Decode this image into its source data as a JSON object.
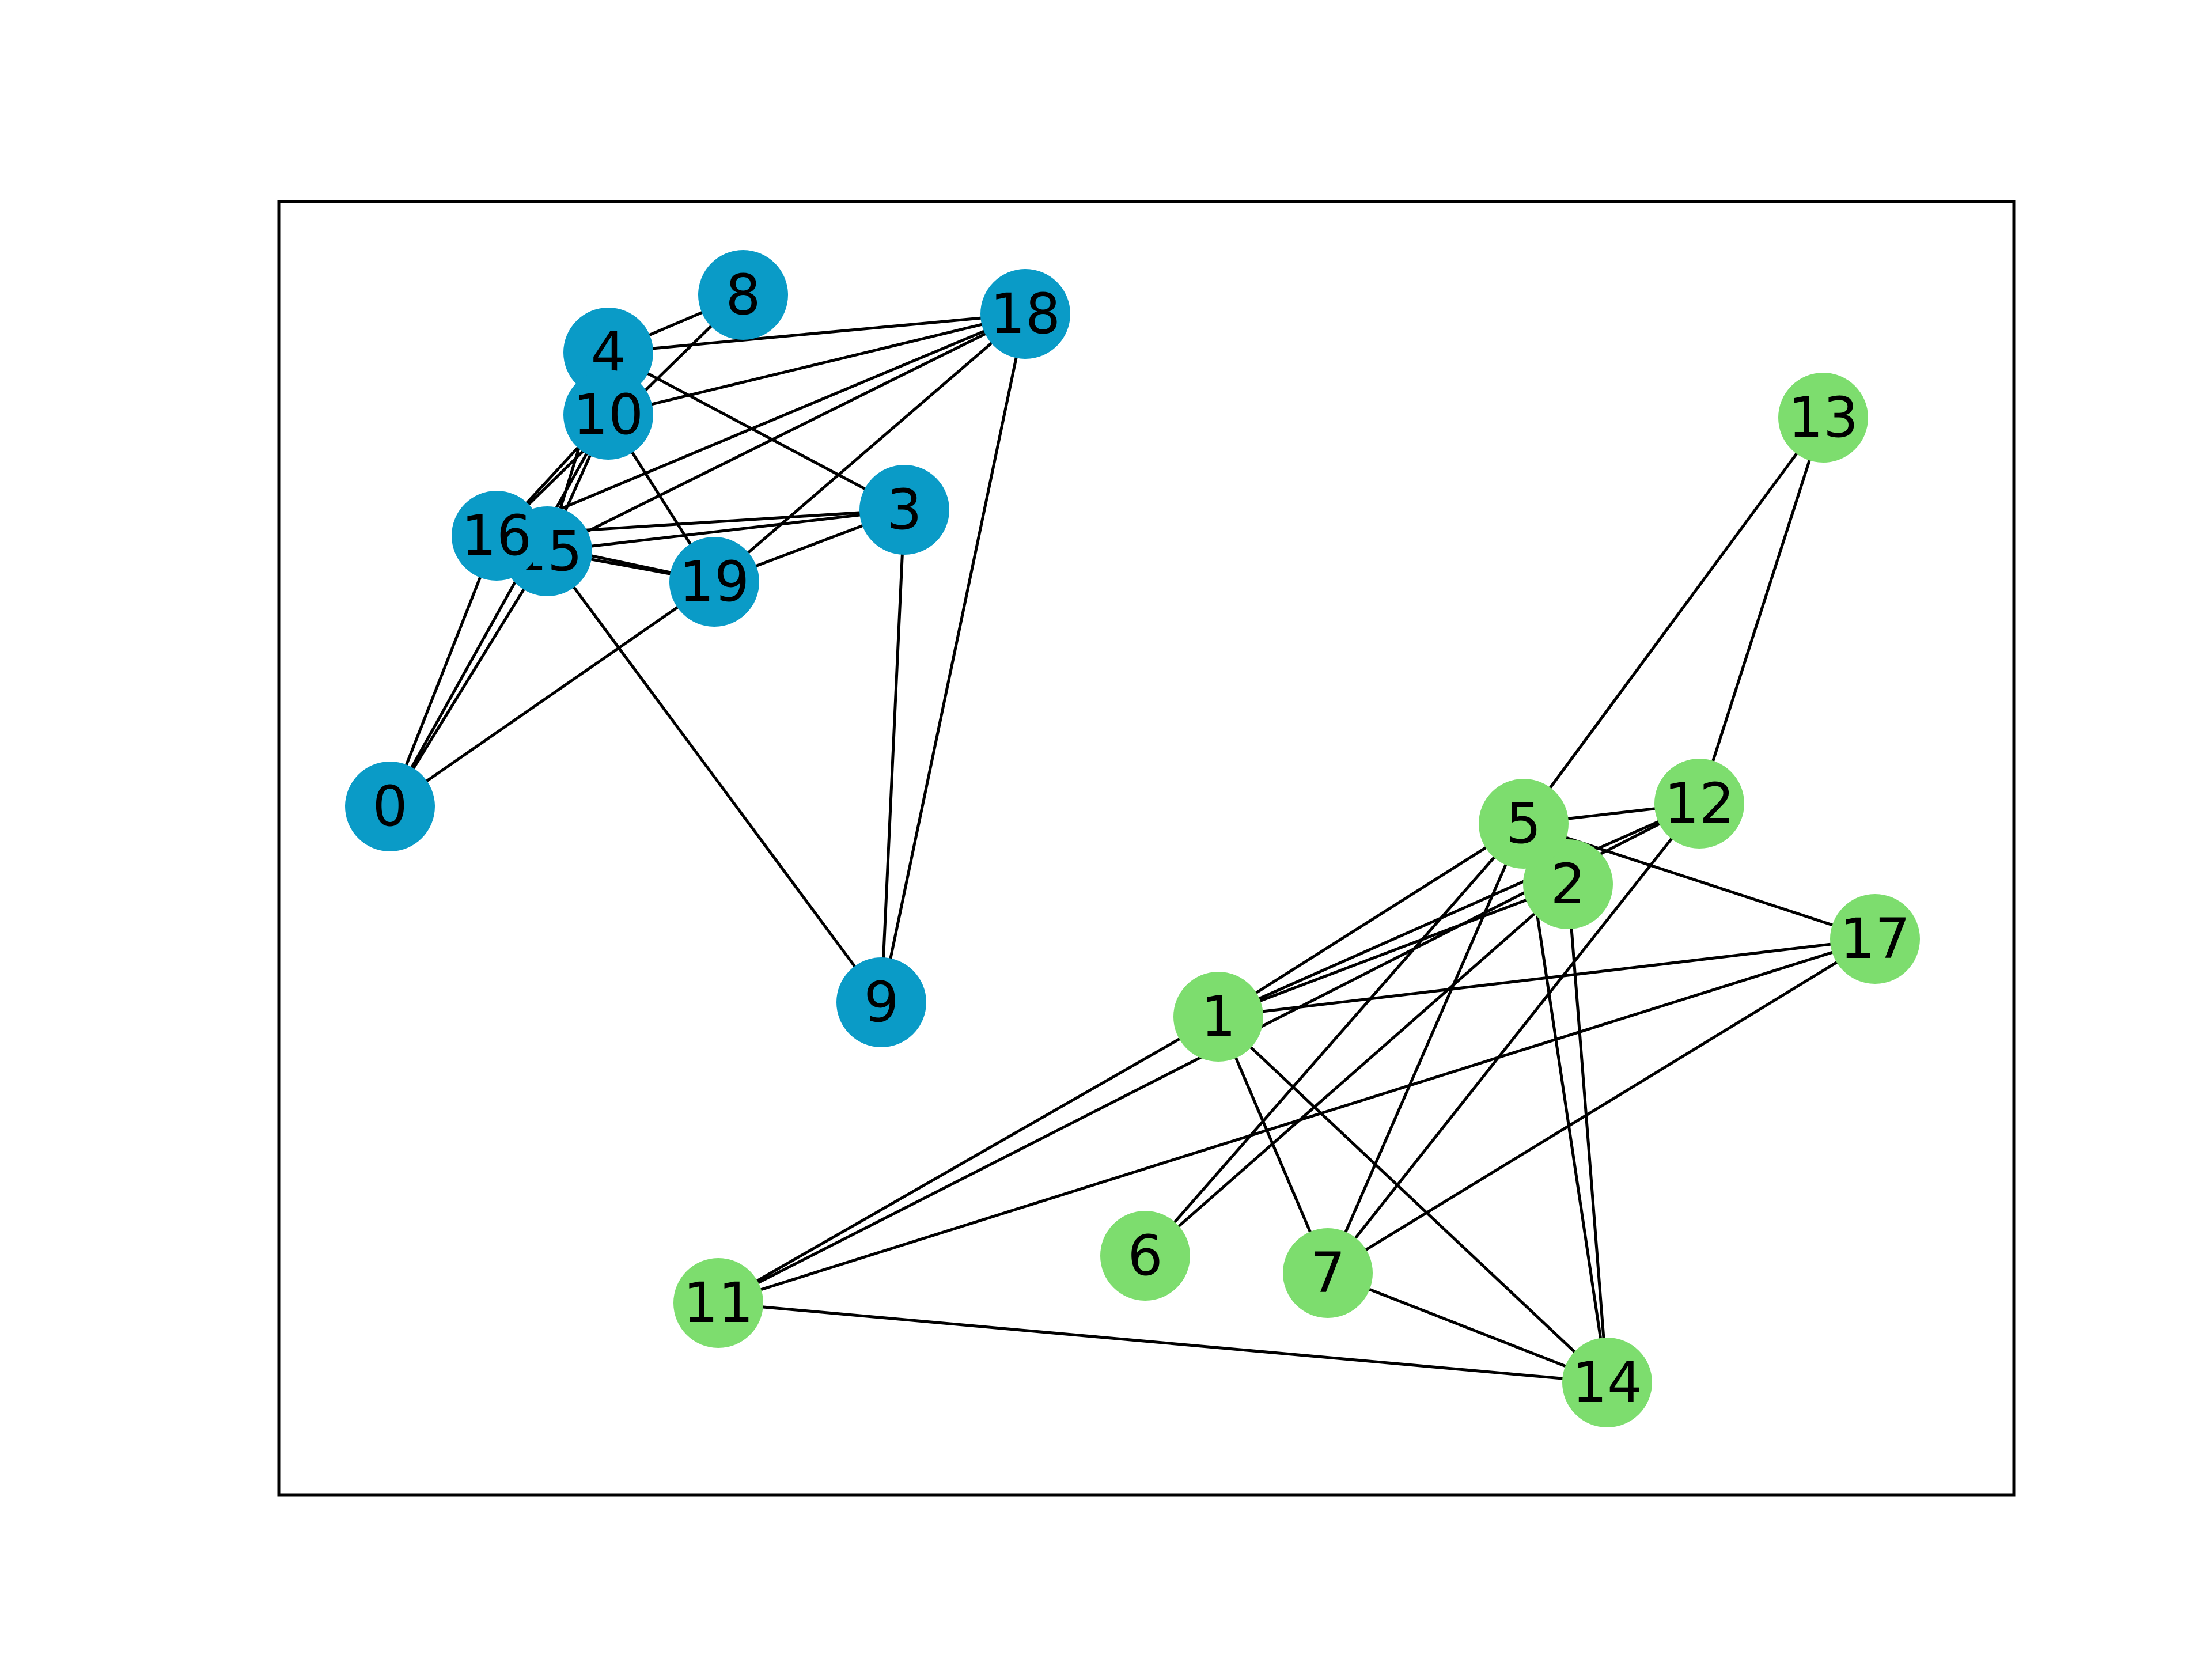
{
  "graph": {
    "groups": {
      "blue": "#0a9bc7",
      "green": "#7ddd6e"
    },
    "nodes": [
      {
        "id": "0",
        "label": "0",
        "group": "blue"
      },
      {
        "id": "3",
        "label": "3",
        "group": "blue"
      },
      {
        "id": "4",
        "label": "4",
        "group": "blue"
      },
      {
        "id": "8",
        "label": "8",
        "group": "blue"
      },
      {
        "id": "9",
        "label": "9",
        "group": "blue"
      },
      {
        "id": "10",
        "label": "10",
        "group": "blue"
      },
      {
        "id": "15",
        "label": "15",
        "group": "blue"
      },
      {
        "id": "16",
        "label": "16",
        "group": "blue"
      },
      {
        "id": "18",
        "label": "18",
        "group": "blue"
      },
      {
        "id": "19",
        "label": "19",
        "group": "blue"
      },
      {
        "id": "1",
        "label": "1",
        "group": "green"
      },
      {
        "id": "2",
        "label": "2",
        "group": "green"
      },
      {
        "id": "5",
        "label": "5",
        "group": "green"
      },
      {
        "id": "6",
        "label": "6",
        "group": "green"
      },
      {
        "id": "7",
        "label": "7",
        "group": "green"
      },
      {
        "id": "11",
        "label": "11",
        "group": "green"
      },
      {
        "id": "12",
        "label": "12",
        "group": "green"
      },
      {
        "id": "13",
        "label": "13",
        "group": "green"
      },
      {
        "id": "14",
        "label": "14",
        "group": "green"
      },
      {
        "id": "17",
        "label": "17",
        "group": "green"
      }
    ],
    "edges": [
      [
        "4",
        "8"
      ],
      [
        "4",
        "18"
      ],
      [
        "4",
        "3"
      ],
      [
        "4",
        "15"
      ],
      [
        "8",
        "16"
      ],
      [
        "10",
        "18"
      ],
      [
        "10",
        "19"
      ],
      [
        "10",
        "15"
      ],
      [
        "10",
        "16"
      ],
      [
        "10",
        "0"
      ],
      [
        "16",
        "18"
      ],
      [
        "16",
        "3"
      ],
      [
        "16",
        "19"
      ],
      [
        "16",
        "0"
      ],
      [
        "15",
        "18"
      ],
      [
        "15",
        "3"
      ],
      [
        "15",
        "19"
      ],
      [
        "15",
        "0"
      ],
      [
        "15",
        "9"
      ],
      [
        "19",
        "18"
      ],
      [
        "19",
        "3"
      ],
      [
        "19",
        "0"
      ],
      [
        "3",
        "9"
      ],
      [
        "18",
        "9"
      ],
      [
        "13",
        "5"
      ],
      [
        "13",
        "12"
      ],
      [
        "5",
        "12"
      ],
      [
        "5",
        "17"
      ],
      [
        "5",
        "1"
      ],
      [
        "5",
        "7"
      ],
      [
        "5",
        "6"
      ],
      [
        "12",
        "1"
      ],
      [
        "12",
        "7"
      ],
      [
        "2",
        "1"
      ],
      [
        "2",
        "14"
      ],
      [
        "2",
        "6"
      ],
      [
        "1",
        "17"
      ],
      [
        "1",
        "11"
      ],
      [
        "1",
        "7"
      ],
      [
        "1",
        "14"
      ],
      [
        "17",
        "11"
      ],
      [
        "17",
        "7"
      ],
      [
        "11",
        "14"
      ],
      [
        "7",
        "14"
      ],
      [
        "12",
        "11"
      ],
      [
        "5",
        "14"
      ]
    ]
  }
}
